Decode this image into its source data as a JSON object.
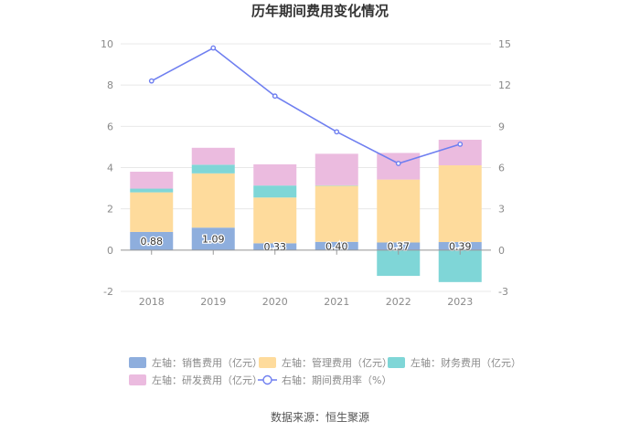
{
  "chart_data": {
    "type": "bar",
    "title": "历年期间费用变化情况",
    "categories": [
      "2018",
      "2019",
      "2020",
      "2021",
      "2022",
      "2023"
    ],
    "series": [
      {
        "name": "左轴：销售费用（亿元）",
        "axis": "left",
        "kind": "bar",
        "color": "#8eaedd",
        "values": [
          0.88,
          1.09,
          0.33,
          0.4,
          0.37,
          0.39
        ]
      },
      {
        "name": "左轴：管理费用（亿元）",
        "axis": "left",
        "kind": "bar",
        "color": "#fedb9c",
        "values": [
          1.92,
          2.63,
          2.22,
          2.72,
          3.05,
          3.72
        ]
      },
      {
        "name": "左轴：财务费用（亿元）",
        "axis": "left",
        "kind": "bar",
        "color": "#7fd6d7",
        "values": [
          0.18,
          0.42,
          0.58,
          0.02,
          -1.25,
          -1.55
        ]
      },
      {
        "name": "左轴：研发费用（亿元）",
        "axis": "left",
        "kind": "bar",
        "color": "#ebbbdf",
        "values": [
          0.82,
          0.82,
          1.03,
          1.53,
          1.29,
          1.24
        ]
      },
      {
        "name": "右轴：期间费用率（%）",
        "axis": "right",
        "kind": "line",
        "color": "#6f7ff0",
        "values": [
          12.3,
          14.7,
          11.2,
          8.6,
          6.3,
          7.7
        ]
      }
    ],
    "left_axis": {
      "ylim": [
        -2,
        10
      ],
      "ticks": [
        "-2",
        "0",
        "2",
        "4",
        "6",
        "8",
        "10"
      ]
    },
    "right_axis": {
      "ylim": [
        -3,
        15
      ],
      "ticks": [
        "-3",
        "0",
        "3",
        "6",
        "9",
        "12",
        "15"
      ]
    },
    "data_labels": [
      "0.88",
      "1.09",
      "0.33",
      "0.40",
      "0.37",
      "0.39"
    ],
    "legend_position": "bottom",
    "grid": true
  },
  "source": "数据来源：恒生聚源"
}
